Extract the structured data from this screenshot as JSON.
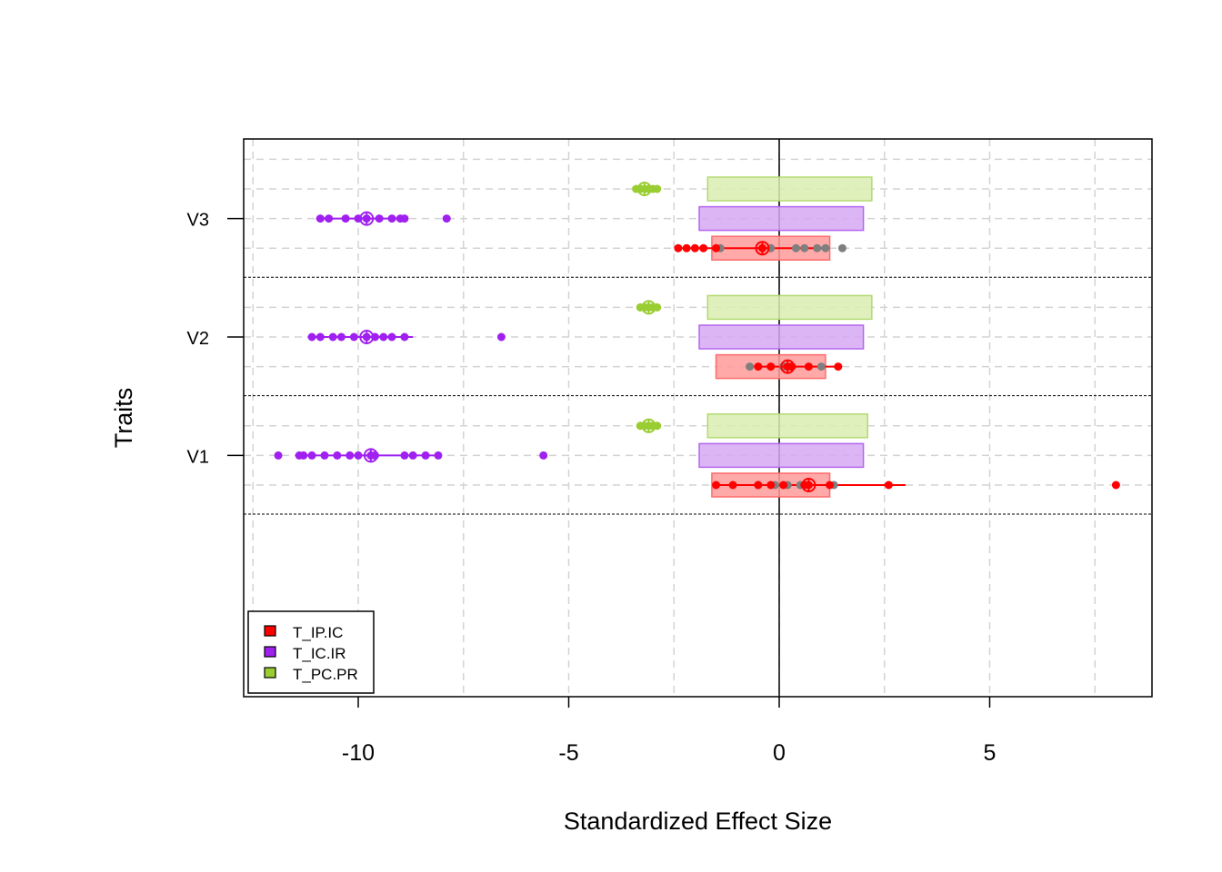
{
  "chart_data": {
    "type": "scatter",
    "xlabel": "Standardized Effect Size",
    "ylabel": "Traits",
    "xlim": [
      -12.6,
      9.0
    ],
    "xticks": [
      {
        "value": -10,
        "label": "-10"
      },
      {
        "value": -5,
        "label": "-5"
      },
      {
        "value": 0,
        "label": "0"
      },
      {
        "value": 5,
        "label": "5"
      }
    ],
    "grid": true,
    "legend_position": "bottom-left",
    "reference_line": 0,
    "categories": [
      "V1",
      "V2",
      "V3"
    ],
    "series": [
      {
        "name": "T_IP.IC",
        "color": "#ff0000",
        "fill": "#ff9a9a",
        "stroke": "#ff6b6b"
      },
      {
        "name": "T_IC.IR",
        "color": "#a020f0",
        "fill": "#d6a8f3",
        "stroke": "#b565ee"
      },
      {
        "name": "T_PC.PR",
        "color": "#9acd32",
        "fill": "#d9edb0",
        "stroke": "#b3da72"
      }
    ],
    "traits": [
      {
        "name": "V1",
        "groups": [
          {
            "series": 0,
            "box": [
              -1.6,
              1.2
            ],
            "mean": 0.7,
            "line": [
              -1.5,
              3.0
            ],
            "points": [
              -1.5,
              -1.1,
              -0.5,
              -0.2,
              0.1,
              0.6,
              0.7,
              1.2,
              2.6,
              8.0
            ],
            "grey_points": [
              -0.5,
              -0.1,
              0.2,
              0.5,
              1.3
            ]
          },
          {
            "series": 1,
            "box": [
              -1.9,
              2.0
            ],
            "mean": -9.7,
            "line": [
              -11.5,
              -8.1
            ],
            "points": [
              -11.9,
              -11.4,
              -11.3,
              -11.1,
              -10.8,
              -10.5,
              -10.2,
              -10.0,
              -9.7,
              -9.6,
              -8.9,
              -8.7,
              -8.4,
              -8.1,
              -5.6
            ],
            "grey_points": []
          },
          {
            "series": 2,
            "box": [
              -1.7,
              2.1
            ],
            "mean": -3.1,
            "line": [
              -3.3,
              -2.9
            ],
            "points": [
              -3.3,
              -3.2,
              -3.1,
              -3.0,
              -2.9
            ],
            "grey_points": []
          }
        ]
      },
      {
        "name": "V2",
        "groups": [
          {
            "series": 0,
            "box": [
              -1.5,
              1.1
            ],
            "mean": 0.2,
            "line": [
              -0.6,
              1.4
            ],
            "points": [
              -0.5,
              -0.2,
              0.2,
              0.3,
              0.7,
              1.4
            ],
            "grey_points": [
              -0.7,
              0.1,
              1.0
            ]
          },
          {
            "series": 1,
            "box": [
              -1.9,
              2.0
            ],
            "mean": -9.8,
            "line": [
              -11.2,
              -8.7
            ],
            "points": [
              -11.1,
              -10.9,
              -10.6,
              -10.4,
              -10.1,
              -9.8,
              -9.6,
              -9.4,
              -9.2,
              -8.9,
              -6.6
            ],
            "grey_points": []
          },
          {
            "series": 2,
            "box": [
              -1.7,
              2.2
            ],
            "mean": -3.1,
            "line": [
              -3.3,
              -2.9
            ],
            "points": [
              -3.3,
              -3.2,
              -3.1,
              -3.0,
              -2.9
            ],
            "grey_points": []
          }
        ]
      },
      {
        "name": "V3",
        "groups": [
          {
            "series": 0,
            "box": [
              -1.6,
              1.2
            ],
            "mean": -0.4,
            "line": [
              -2.4,
              1.2
            ],
            "points": [
              -2.4,
              -2.2,
              -2.0,
              -1.8,
              -1.5,
              -0.4
            ],
            "grey_points": [
              -1.4,
              -0.2,
              0.4,
              0.6,
              0.9,
              1.1,
              1.5
            ]
          },
          {
            "series": 1,
            "box": [
              -1.9,
              2.0
            ],
            "mean": -9.8,
            "line": [
              -11.0,
              -8.9
            ],
            "points": [
              -10.9,
              -10.7,
              -10.3,
              -10.0,
              -9.8,
              -9.5,
              -9.2,
              -9.0,
              -8.9,
              -7.9
            ],
            "grey_points": []
          },
          {
            "series": 2,
            "box": [
              -1.7,
              2.2
            ],
            "mean": -3.2,
            "line": [
              -3.4,
              -2.9
            ],
            "points": [
              -3.4,
              -3.3,
              -3.2,
              -3.1,
              -3.0,
              -2.9
            ],
            "grey_points": []
          }
        ]
      }
    ]
  }
}
